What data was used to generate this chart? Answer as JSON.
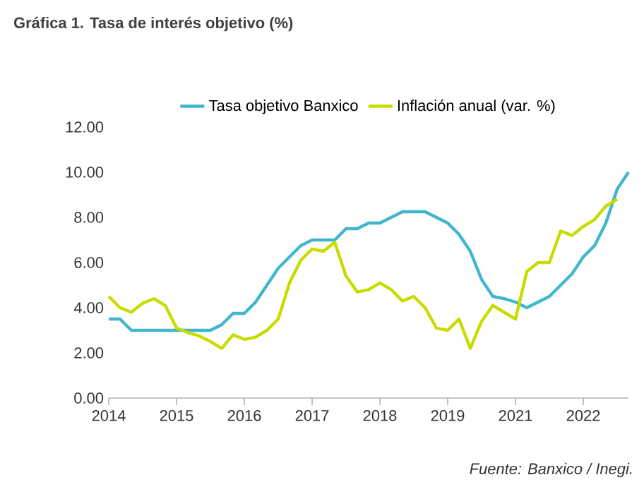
{
  "chart_data": {
    "type": "line",
    "title": "Gráfica 1. Tasa de interés objetivo (%)",
    "annotations": [
      "*Fuente: Banxico / Inegi.*"
    ],
    "categories": [
      "2014",
      null,
      null,
      null,
      null,
      null,
      "2015",
      null,
      null,
      null,
      null,
      null,
      "2016",
      null,
      null,
      null,
      null,
      null,
      "2017",
      null,
      null,
      null,
      null,
      null,
      "2018",
      null,
      null,
      null,
      null,
      null,
      "2019",
      null,
      null,
      null,
      null,
      null,
      "2021",
      null,
      null,
      null,
      null,
      null,
      "2022",
      null,
      null,
      null,
      null
    ],
    "ylim": [
      0,
      12
    ],
    "yticks": [
      {
        "value": 0,
        "label": "0.00"
      },
      {
        "value": 2,
        "label": "2.00"
      },
      {
        "value": 4,
        "label": "4.00"
      },
      {
        "value": 6,
        "label": "6.00"
      },
      {
        "value": 8,
        "label": "8.00"
      },
      {
        "value": 10,
        "label": "10.00"
      },
      {
        "value": 12,
        "label": "12.00"
      }
    ],
    "grid": false,
    "legend": "top",
    "marker": "none",
    "line_style": "solid",
    "series": [
      {
        "name": "Tasa objetivo Banxico",
        "color": "#41b6cc",
        "values": [
          3.5,
          3.5,
          3.0,
          3.0,
          3.0,
          3.0,
          3.0,
          3.0,
          3.0,
          3.0,
          3.25,
          3.75,
          3.75,
          4.25,
          5.0,
          5.75,
          6.25,
          6.75,
          7.0,
          7.0,
          7.0,
          7.5,
          7.5,
          7.75,
          7.75,
          8.0,
          8.25,
          8.25,
          8.25,
          8.0,
          7.75,
          7.25,
          6.5,
          5.25,
          4.5,
          4.4,
          4.25,
          4.0,
          4.25,
          4.5,
          5.0,
          5.5,
          6.25,
          6.75,
          7.75,
          9.25,
          10.0
        ]
      },
      {
        "name": "Inflación anual (var. %)",
        "color": "#c8dc00",
        "values": [
          4.5,
          4.0,
          3.8,
          4.2,
          4.4,
          4.1,
          3.1,
          2.9,
          2.75,
          2.5,
          2.2,
          2.8,
          2.6,
          2.7,
          3.0,
          3.5,
          5.1,
          6.1,
          6.6,
          6.5,
          6.9,
          5.4,
          4.7,
          4.8,
          5.1,
          4.8,
          4.3,
          4.5,
          4.0,
          3.1,
          3.0,
          3.5,
          2.2,
          3.4,
          4.1,
          3.8,
          3.5,
          5.6,
          6.0,
          6.0,
          7.4,
          7.2,
          7.6,
          7.9,
          8.5,
          8.8,
          null
        ]
      }
    ]
  }
}
